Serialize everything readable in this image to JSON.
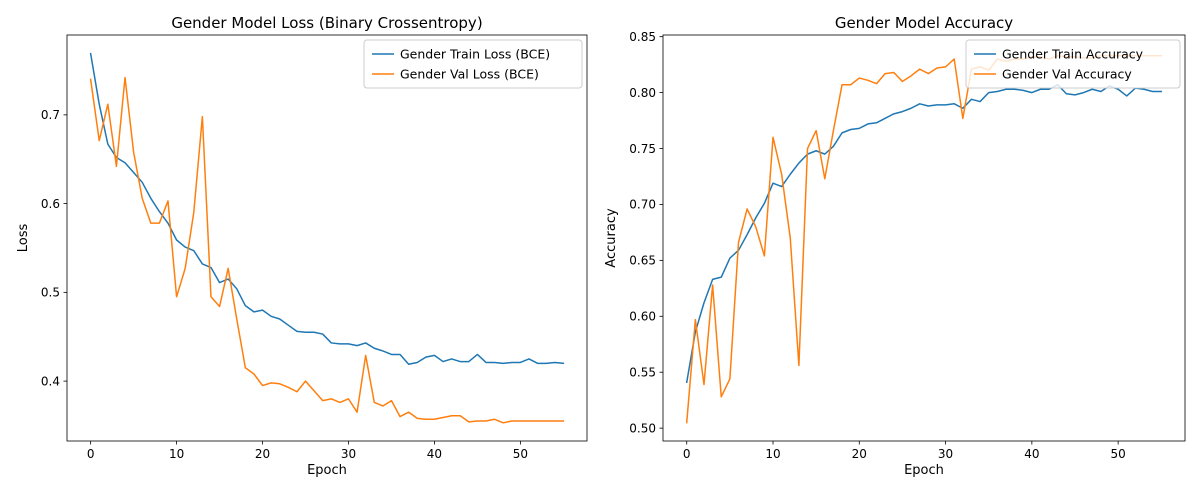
{
  "colors": {
    "train": "#1f77b4",
    "val": "#ff7f0e"
  },
  "chart_data": [
    {
      "type": "line",
      "title": "Gender Model Loss (Binary Crossentropy)",
      "xlabel": "Epoch",
      "ylabel": "Loss",
      "xlim": [
        -2.75,
        57.75
      ],
      "ylim": [
        0.3325,
        0.79
      ],
      "xticks": [
        0,
        10,
        20,
        30,
        40,
        50
      ],
      "yticks": [
        0.4,
        0.5,
        0.6,
        0.7
      ],
      "ytick_labels": [
        "0.4",
        "0.5",
        "0.6",
        "0.7"
      ],
      "legend": "upper right",
      "grid": false,
      "series": [
        {
          "name": "Gender Train Loss (BCE)",
          "color": "#1f77b4",
          "values": [
            0.769,
            0.712,
            0.667,
            0.652,
            0.646,
            0.635,
            0.624,
            0.606,
            0.591,
            0.578,
            0.559,
            0.551,
            0.547,
            0.532,
            0.528,
            0.511,
            0.515,
            0.504,
            0.485,
            0.478,
            0.48,
            0.473,
            0.47,
            0.463,
            0.456,
            0.455,
            0.455,
            0.453,
            0.443,
            0.442,
            0.442,
            0.44,
            0.443,
            0.437,
            0.434,
            0.43,
            0.43,
            0.419,
            0.421,
            0.427,
            0.429,
            0.422,
            0.425,
            0.422,
            0.422,
            0.43,
            0.421,
            0.421,
            0.42,
            0.421,
            0.421,
            0.425,
            0.42,
            0.42,
            0.421,
            0.42
          ]
        },
        {
          "name": "Gender Val Loss (BCE)",
          "color": "#ff7f0e",
          "values": [
            0.74,
            0.671,
            0.712,
            0.642,
            0.742,
            0.658,
            0.606,
            0.578,
            0.578,
            0.603,
            0.495,
            0.527,
            0.59,
            0.698,
            0.495,
            0.484,
            0.527,
            0.47,
            0.415,
            0.408,
            0.395,
            0.398,
            0.397,
            0.393,
            0.388,
            0.4,
            0.389,
            0.378,
            0.38,
            0.376,
            0.38,
            0.365,
            0.429,
            0.376,
            0.372,
            0.378,
            0.36,
            0.365,
            0.358,
            0.357,
            0.357,
            0.359,
            0.361,
            0.361,
            0.354,
            0.355,
            0.355,
            0.357,
            0.353,
            0.355,
            0.355,
            0.355,
            0.355,
            0.355,
            0.355,
            0.355
          ]
        }
      ]
    },
    {
      "type": "line",
      "title": "Gender Model Accuracy",
      "xlabel": "Epoch",
      "ylabel": "Accuracy",
      "xlim": [
        -2.75,
        57.75
      ],
      "ylim": [
        0.4885,
        0.8515
      ],
      "xticks": [
        0,
        10,
        20,
        30,
        40,
        50
      ],
      "yticks": [
        0.5,
        0.55,
        0.6,
        0.65,
        0.7,
        0.75,
        0.8,
        0.85
      ],
      "ytick_labels": [
        "0.50",
        "0.55",
        "0.60",
        "0.65",
        "0.70",
        "0.75",
        "0.80",
        "0.85"
      ],
      "legend": "upper right",
      "grid": false,
      "series": [
        {
          "name": "Gender Train Accuracy",
          "color": "#1f77b4",
          "values": [
            0.541,
            0.586,
            0.612,
            0.633,
            0.635,
            0.652,
            0.659,
            0.673,
            0.688,
            0.701,
            0.719,
            0.716,
            0.727,
            0.737,
            0.745,
            0.748,
            0.745,
            0.752,
            0.764,
            0.767,
            0.768,
            0.772,
            0.773,
            0.777,
            0.781,
            0.783,
            0.786,
            0.79,
            0.788,
            0.789,
            0.789,
            0.79,
            0.786,
            0.794,
            0.792,
            0.8,
            0.801,
            0.803,
            0.803,
            0.802,
            0.8,
            0.803,
            0.803,
            0.807,
            0.799,
            0.798,
            0.8,
            0.803,
            0.801,
            0.806,
            0.803,
            0.797,
            0.804,
            0.803,
            0.801,
            0.801
          ]
        },
        {
          "name": "Gender Val Accuracy",
          "color": "#ff7f0e",
          "values": [
            0.505,
            0.597,
            0.539,
            0.628,
            0.528,
            0.544,
            0.666,
            0.696,
            0.68,
            0.654,
            0.76,
            0.727,
            0.67,
            0.556,
            0.75,
            0.766,
            0.723,
            0.766,
            0.807,
            0.807,
            0.813,
            0.811,
            0.808,
            0.817,
            0.818,
            0.81,
            0.815,
            0.821,
            0.817,
            0.822,
            0.823,
            0.83,
            0.777,
            0.821,
            0.823,
            0.82,
            0.83,
            0.828,
            0.83,
            0.83,
            0.832,
            0.832,
            0.83,
            0.833,
            0.832,
            0.832,
            0.831,
            0.831,
            0.833,
            0.833,
            0.833,
            0.833,
            0.833,
            0.833,
            0.833,
            0.833
          ]
        }
      ]
    }
  ]
}
